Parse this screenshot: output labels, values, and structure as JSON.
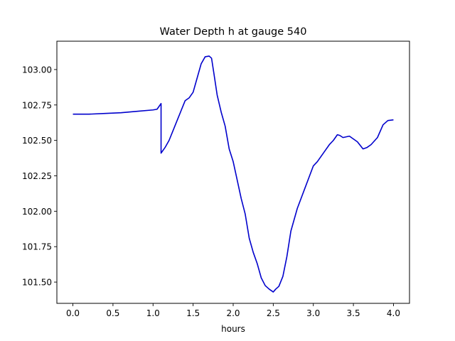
{
  "chart_data": {
    "type": "line",
    "title": "Water Depth h at gauge 540",
    "xlabel": "hours",
    "ylabel": "",
    "xlim": [
      -0.2,
      4.2
    ],
    "ylim": [
      101.35,
      103.2
    ],
    "xticks": [
      0.0,
      0.5,
      1.0,
      1.5,
      2.0,
      2.5,
      3.0,
      3.5,
      4.0
    ],
    "xtick_labels": [
      "0.0",
      "0.5",
      "1.0",
      "1.5",
      "2.0",
      "2.5",
      "3.0",
      "3.5",
      "4.0"
    ],
    "yticks": [
      101.5,
      101.75,
      102.0,
      102.25,
      102.5,
      102.75,
      103.0
    ],
    "ytick_labels": [
      "101.50",
      "101.75",
      "102.00",
      "102.25",
      "102.50",
      "102.75",
      "103.00"
    ],
    "grid": false,
    "series": [
      {
        "color": "#0000cc",
        "x": [
          0.0,
          0.2,
          0.4,
          0.6,
          0.8,
          1.0,
          1.05,
          1.1,
          1.1,
          1.15,
          1.2,
          1.25,
          1.3,
          1.35,
          1.4,
          1.45,
          1.5,
          1.55,
          1.6,
          1.65,
          1.7,
          1.73,
          1.76,
          1.8,
          1.85,
          1.9,
          1.95,
          2.0,
          2.05,
          2.1,
          2.15,
          2.2,
          2.25,
          2.3,
          2.35,
          2.4,
          2.45,
          2.5,
          2.53,
          2.57,
          2.62,
          2.67,
          2.72,
          2.8,
          2.9,
          3.0,
          3.05,
          3.1,
          3.15,
          3.2,
          3.25,
          3.3,
          3.33,
          3.37,
          3.45,
          3.55,
          3.62,
          3.67,
          3.72,
          3.8,
          3.87,
          3.93,
          4.0
        ],
        "y": [
          102.685,
          102.685,
          102.69,
          102.695,
          102.705,
          102.715,
          102.72,
          102.76,
          102.41,
          102.45,
          102.5,
          102.57,
          102.64,
          102.71,
          102.78,
          102.8,
          102.84,
          102.94,
          103.04,
          103.09,
          103.095,
          103.08,
          102.97,
          102.82,
          102.7,
          102.6,
          102.44,
          102.35,
          102.22,
          102.09,
          101.98,
          101.81,
          101.71,
          101.63,
          101.53,
          101.475,
          101.45,
          101.43,
          101.45,
          101.47,
          101.54,
          101.68,
          101.86,
          102.02,
          102.17,
          102.32,
          102.35,
          102.39,
          102.43,
          102.47,
          102.5,
          102.54,
          102.535,
          102.52,
          102.53,
          102.49,
          102.44,
          102.45,
          102.47,
          102.52,
          102.61,
          102.64,
          102.645
        ]
      }
    ]
  }
}
